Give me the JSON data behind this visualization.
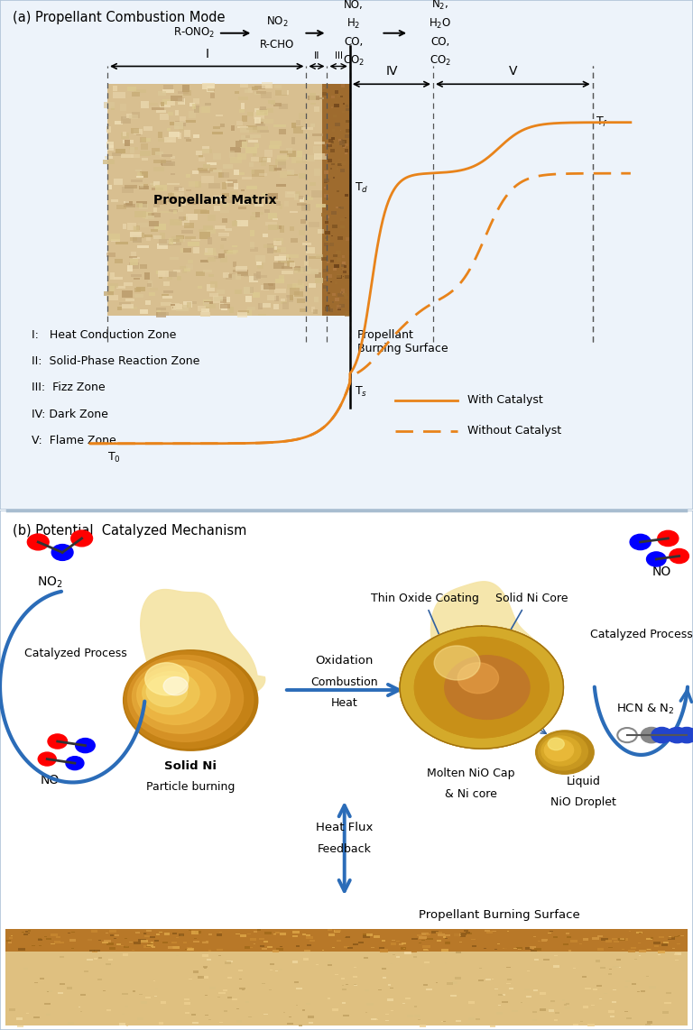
{
  "title_a": "(a) Propellant Combustion Mode",
  "title_b": "(b) Potential  Catalyzed Mechanism",
  "orange_color": "#E8831A",
  "blue_color": "#2B6CB8",
  "dark_color": "#333333",
  "bg_color": "#EDF3FA",
  "zone_descriptions": [
    "I:   Heat Conduction Zone",
    "II:  Solid-Phase Reaction Zone",
    "III:  Fizz Zone",
    "IV: Dark Zone",
    "V:  Flame Zone"
  ],
  "legend_solid": "With Catalyst",
  "legend_dashed": "Without Catalyst",
  "propellant_matrix_label": "Propellant Matrix",
  "burning_surface_label": "Propellant\nBurning Surface"
}
